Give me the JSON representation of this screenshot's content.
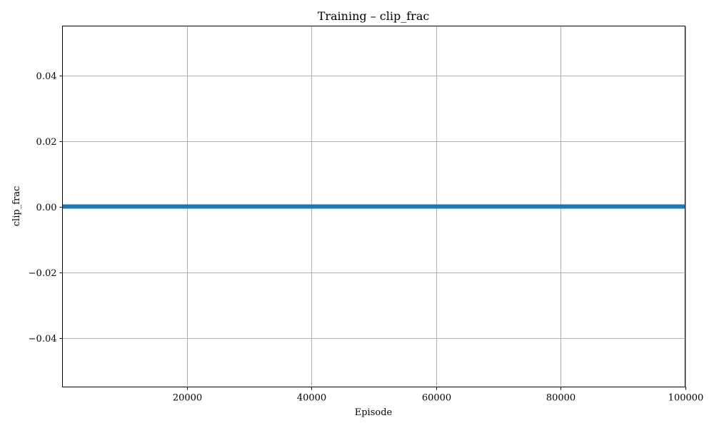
{
  "chart_data": {
    "type": "line",
    "title": "Training – clip_frac",
    "xlabel": "Episode",
    "ylabel": "clip_frac",
    "xlim": [
      0,
      100000
    ],
    "ylim": [
      -0.055,
      0.055
    ],
    "xticks": [
      20000,
      40000,
      60000,
      80000,
      100000
    ],
    "xtick_labels": [
      "20000",
      "40000",
      "60000",
      "80000",
      "100000"
    ],
    "yticks": [
      0.04,
      0.02,
      0.0,
      -0.02,
      -0.04
    ],
    "ytick_labels": [
      "0.04",
      "0.02",
      "0.00",
      "−0.02",
      "−0.04"
    ],
    "grid": true,
    "series": [
      {
        "color": "#1f77b4",
        "x": [
          0,
          10000,
          20000,
          30000,
          40000,
          50000,
          60000,
          70000,
          80000,
          90000,
          100000
        ],
        "y": [
          0,
          0,
          0,
          0,
          0,
          0,
          0,
          0,
          0,
          0,
          0
        ]
      }
    ]
  }
}
